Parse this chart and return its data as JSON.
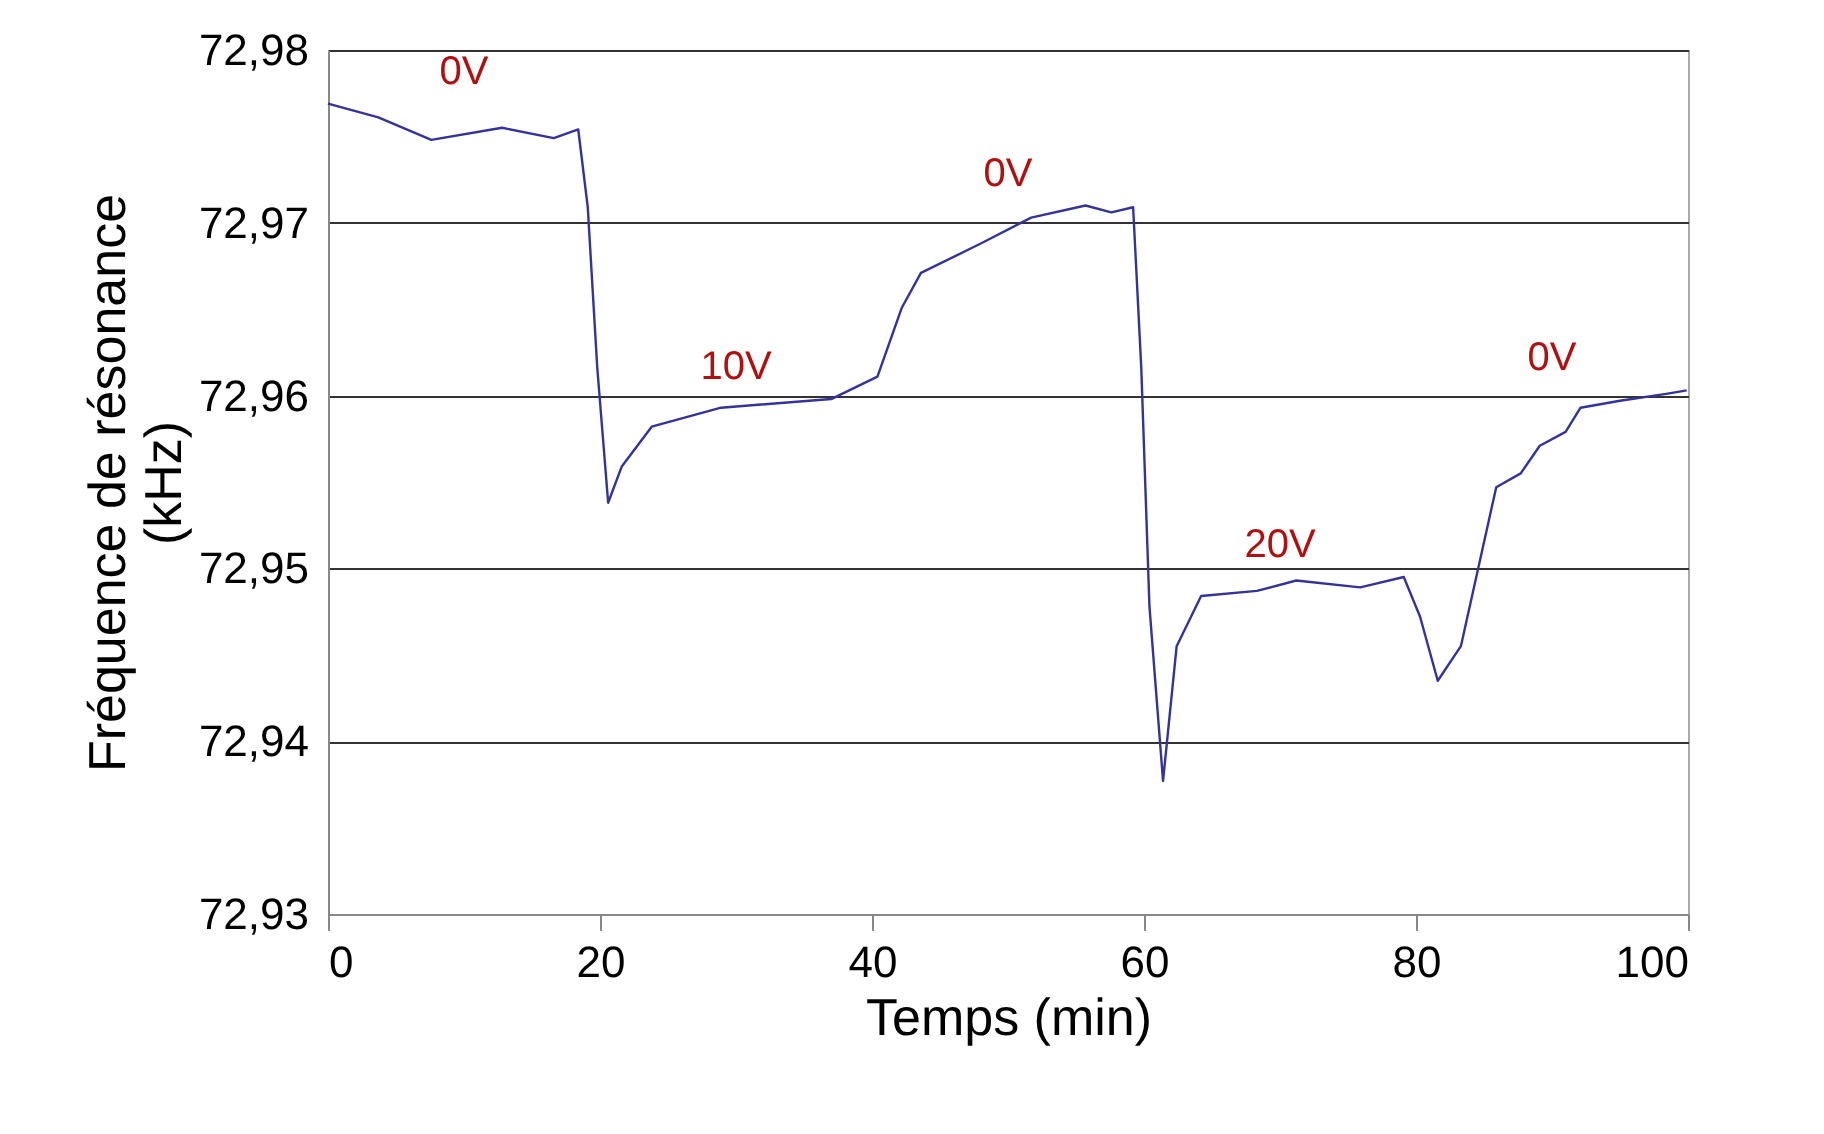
{
  "chart_data": {
    "type": "line",
    "xlabel": "Temps (min)",
    "ylabel": "Fréquence de résonance (kHz)",
    "x": [
      0,
      3.7,
      7.6,
      12.8,
      16.6,
      18.4,
      19.1,
      19.8,
      20.6,
      21.6,
      23.8,
      28.9,
      37,
      40.4,
      42.2,
      43.6,
      48,
      51.7,
      55.7,
      57.6,
      59.2,
      59.8,
      60.4,
      61.4,
      62.4,
      64.2,
      68.3,
      71.2,
      75.9,
      79.1,
      80.3,
      81.6,
      83.3,
      85.9,
      87.7,
      89.1,
      91,
      92.1,
      95,
      98.4,
      99.9
    ],
    "series": [
      {
        "color": "#333399",
        "values": [
          72.9769,
          72.9761,
          72.9748,
          72.9755,
          72.9749,
          72.9754,
          72.9709,
          72.9616,
          72.9538,
          72.9559,
          72.9582,
          72.9593,
          72.9598,
          72.9611,
          72.9651,
          72.9671,
          72.9688,
          72.9703,
          72.971,
          72.9706,
          72.9709,
          72.9616,
          72.9478,
          72.9377,
          72.9455,
          72.9484,
          72.9487,
          72.9493,
          72.9489,
          72.9495,
          72.9472,
          72.9435,
          72.9455,
          72.9547,
          72.9555,
          72.9571,
          72.9579,
          72.9593,
          72.9597,
          72.9601,
          72.9603
        ]
      }
    ],
    "xlim": [
      0,
      100
    ],
    "xticks": [
      0,
      20,
      40,
      60,
      80,
      100
    ],
    "ylim": [
      72.93,
      72.98
    ],
    "yticks": [
      {
        "value": 72.93,
        "label": "72,93"
      },
      {
        "value": 72.94,
        "label": "72,94"
      },
      {
        "value": 72.95,
        "label": "72,95"
      },
      {
        "value": 72.96,
        "label": "72,96"
      },
      {
        "value": 72.97,
        "label": "72,97"
      },
      {
        "value": 72.98,
        "label": "72,98"
      }
    ],
    "grid": "y",
    "marker": "none",
    "line_style": "solid",
    "annotations": [
      "0V",
      "10V",
      "0V",
      "20V",
      "0V"
    ]
  }
}
